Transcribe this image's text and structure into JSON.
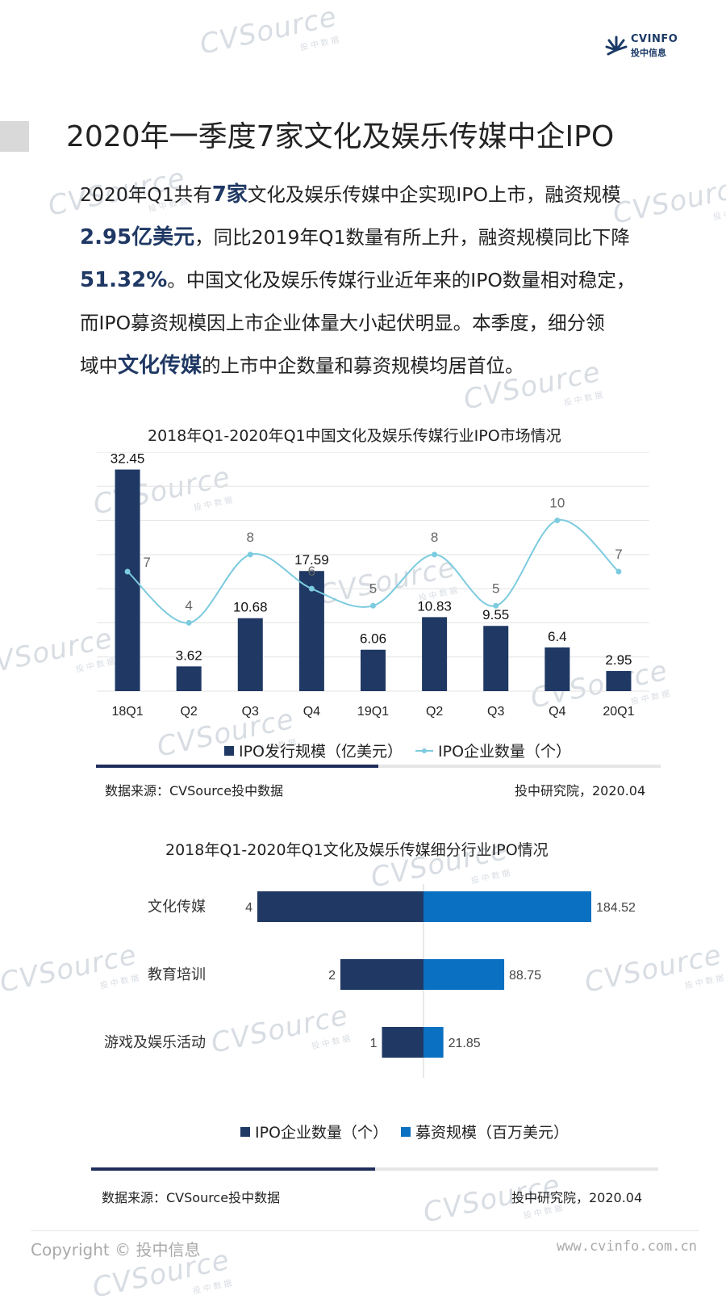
{
  "header": {
    "logo_en": "CVINFO",
    "logo_cn": "投中信息",
    "logo_icon": "sunburst-logo-icon"
  },
  "page_title": "2020年一季度7家文化及娱乐传媒中企IPO",
  "paragraph": {
    "line1_a": "2020年Q1共有",
    "line1_hl": "7家",
    "line1_b": "文化及娱乐传媒中企实现IPO上市，融资规模",
    "line2_hl": "2.95亿美元",
    "line2_b": "，同比2019年Q1数量有所上升，融资规模同比下降",
    "line3_hl": "51.32%",
    "line3_b": "。中国文化及娱乐传媒行业近年来的IPO数量相对稳定，",
    "line4": "而IPO募资规模因上市企业体量大小起伏明显。本季度，细分领",
    "line5_a": "域中",
    "line5_hl": "文化传媒",
    "line5_b": "的上市中企数量和募资规模均居首位。"
  },
  "chart_data": [
    {
      "type": "bar+line",
      "title": "2018年Q1-2020年Q1中国文化及娱乐传媒行业IPO市场情况",
      "categories": [
        "18Q1",
        "Q2",
        "Q3",
        "Q4",
        "19Q1",
        "Q2",
        "Q3",
        "Q4",
        "20Q1"
      ],
      "series": [
        {
          "name": "IPO发行规模（亿美元）",
          "type": "bar",
          "color": "#1f3864",
          "values": [
            32.45,
            3.62,
            10.68,
            17.59,
            6.06,
            10.83,
            9.55,
            6.4,
            2.95
          ],
          "labels": [
            "32.45",
            "3.62",
            "10.68",
            "17.59",
            "6.06",
            "10.83",
            "9.55",
            "6.4",
            "2.95"
          ]
        },
        {
          "name": "IPO企业数量（个）",
          "type": "line",
          "color": "#7ccbdf",
          "values": [
            7,
            4,
            8,
            6,
            5,
            8,
            5,
            10,
            7
          ],
          "labels": [
            "7",
            "4",
            "8",
            "6",
            "5",
            "8",
            "5",
            "10",
            "7"
          ]
        }
      ],
      "bar_ylim": [
        0,
        35
      ],
      "line_ylim": [
        0,
        14
      ],
      "grid": true,
      "legend": "bottom",
      "source": "数据来源：CVSource投中数据",
      "credit": "投中研究院，2020.04",
      "progress": 0.5
    },
    {
      "type": "bar",
      "orientation": "horizontal-butterfly",
      "title": "2018年Q1-2020年Q1文化及娱乐传媒细分行业IPO情况",
      "categories": [
        "文化传媒",
        "教育培训",
        "游戏及娱乐活动"
      ],
      "series": [
        {
          "name": "IPO企业数量（个）",
          "color": "#1f3864",
          "values": [
            4,
            2,
            1
          ],
          "labels": [
            "4",
            "2",
            "1"
          ]
        },
        {
          "name": "募资规模（百万美元）",
          "color": "#0a70c2",
          "values": [
            184.52,
            88.75,
            21.85
          ],
          "labels": [
            "184.52",
            "88.75",
            "21.85"
          ]
        }
      ],
      "legend": "bottom",
      "source": "数据来源：CVSource投中数据",
      "credit": "投中研究院，2020.04",
      "progress": 0.5
    }
  ],
  "watermark": {
    "text": "CVSource",
    "sub": "投中数据"
  },
  "footer": {
    "copyright": "Copyright © 投中信息",
    "website": "www.cvinfo.com.cn"
  }
}
